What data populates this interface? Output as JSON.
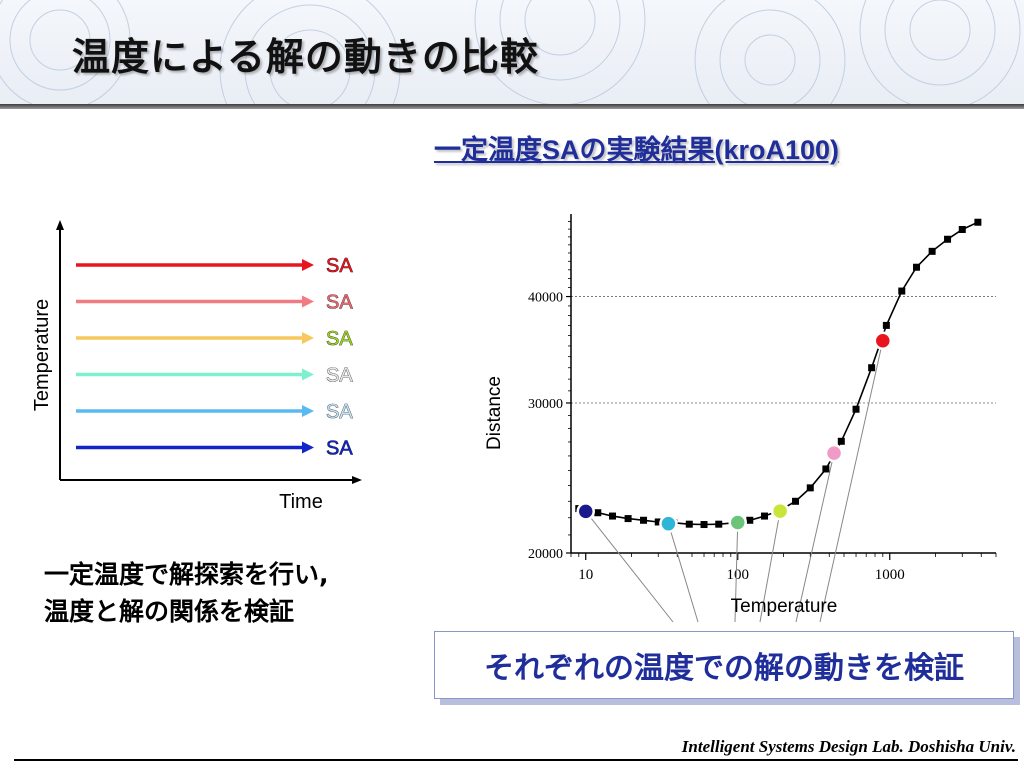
{
  "slide": {
    "title": "温度による解の動きの比較",
    "subtitle": "一定温度SAの実験結果(kroA100)",
    "caption_lines": [
      "一定温度で解探索を行い,",
      "温度と解の関係を検証"
    ],
    "callout": "それぞれの温度での解の動きを検証",
    "footer": "Intelligent Systems Design Lab. Doshisha Univ."
  },
  "schematic": {
    "xlabel": "Time",
    "ylabel": "Temperature",
    "arrows": [
      {
        "label": "SA",
        "color": "#e8141e",
        "label_color": "#e8141e"
      },
      {
        "label": "SA",
        "color": "#f27a82",
        "label_color": "#ef6670"
      },
      {
        "label": "SA",
        "color": "#f7c85e",
        "label_color": "#9bd21f"
      },
      {
        "label": "SA",
        "color": "#7ef0d0",
        "label_color": "#e6e6e6"
      },
      {
        "label": "SA",
        "color": "#5ab8f2",
        "label_color": "#bfe0f5"
      },
      {
        "label": "SA",
        "color": "#1226c8",
        "label_color": "#1226c8"
      }
    ]
  },
  "chart_data": {
    "type": "line",
    "title": "",
    "xlabel": "Temperature",
    "ylabel": "Distance",
    "x_scale": "log",
    "y_scale": "log",
    "xlim": [
      8,
      5000
    ],
    "ylim": [
      20000,
      50000
    ],
    "x_ticks": [
      "10",
      "100",
      "1000"
    ],
    "y_ticks": [
      "20000",
      "30000",
      "40000"
    ],
    "grid": "horizontal dotted at y ticks",
    "series": [
      {
        "x": [
          9,
          12,
          15,
          19,
          24,
          30,
          38,
          48,
          60,
          75,
          95,
          120,
          150,
          190,
          240,
          300,
          380,
          480,
          600,
          760,
          950,
          1200,
          1500,
          1900,
          2400,
          3000,
          3800
        ],
        "y": [
          22550,
          22300,
          22100,
          21950,
          21850,
          21750,
          21700,
          21620,
          21600,
          21620,
          21700,
          21850,
          22100,
          22450,
          23000,
          23850,
          25100,
          27050,
          29500,
          33000,
          37000,
          40600,
          43300,
          45200,
          46700,
          47950,
          48900
        ]
      }
    ],
    "highlighted_points": [
      {
        "x": 10,
        "y": 22380,
        "color": "#1a1a8c"
      },
      {
        "x": 35,
        "y": 21650,
        "color": "#2eb6d8"
      },
      {
        "x": 100,
        "y": 21720,
        "color": "#6cc47a"
      },
      {
        "x": 190,
        "y": 22400,
        "color": "#c8e63a"
      },
      {
        "x": 430,
        "y": 26200,
        "color": "#f09ac8"
      },
      {
        "x": 900,
        "y": 35500,
        "color": "#e8141e"
      }
    ]
  }
}
